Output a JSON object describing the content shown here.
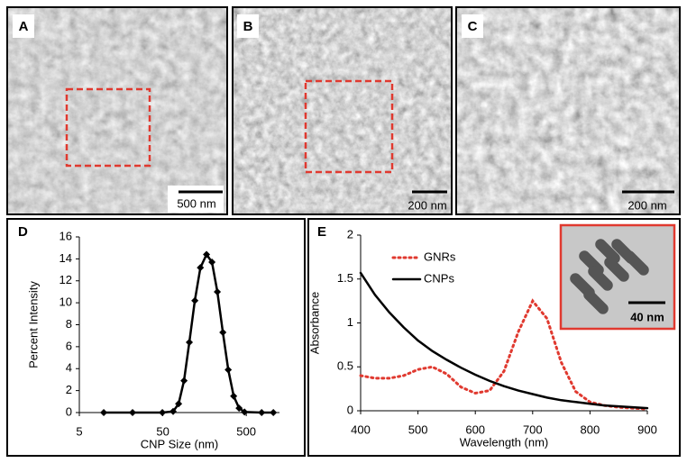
{
  "panels": [
    {
      "label": "A",
      "scale_bar": "500 nm"
    },
    {
      "label": "B",
      "scale_bar": "200 nm"
    },
    {
      "label": "C",
      "scale_bar": "200 nm"
    }
  ],
  "chart_data": [
    {
      "type": "line",
      "panel_label": "D",
      "xlabel": "CNP Size (nm)",
      "ylabel": "Percent Intensity",
      "xscale": "log",
      "xlim": [
        5,
        1250
      ],
      "xticks": [
        5,
        50,
        500
      ],
      "ylim": [
        0,
        16
      ],
      "yticks": [
        0,
        2,
        4,
        6,
        8,
        10,
        12,
        14,
        16
      ],
      "color": "#000000",
      "marker": "diamond",
      "x": [
        9.8,
        21.7,
        49.4,
        66.5,
        77.3,
        89.8,
        104,
        121,
        141,
        167,
        194,
        225,
        262,
        304,
        353,
        410,
        476,
        764,
        1055
      ],
      "values": [
        0,
        0,
        0,
        0.1,
        0.8,
        2.9,
        6.4,
        10.2,
        13.2,
        14.4,
        13.7,
        11.0,
        7.3,
        3.9,
        1.5,
        0.4,
        0.05,
        0,
        0
      ]
    },
    {
      "type": "line",
      "panel_label": "E",
      "xlabel": "Wavelength (nm)",
      "ylabel": "Absorbance",
      "xlim": [
        400,
        900
      ],
      "xticks": [
        400,
        500,
        600,
        700,
        800,
        900
      ],
      "ylim": [
        0,
        2
      ],
      "yticks": [
        0,
        0.5,
        1,
        1.5,
        2
      ],
      "legend": "upper center",
      "inset_label": "40 nm",
      "x": [
        400,
        425,
        450,
        475,
        500,
        525,
        550,
        575,
        600,
        625,
        650,
        675,
        700,
        725,
        750,
        775,
        800,
        825,
        850,
        875,
        900
      ],
      "series": [
        {
          "name": "GNRs",
          "color": "#e0392f",
          "dash": "dotted",
          "values": [
            0.4,
            0.37,
            0.37,
            0.4,
            0.47,
            0.5,
            0.42,
            0.27,
            0.2,
            0.23,
            0.45,
            0.9,
            1.25,
            1.05,
            0.55,
            0.22,
            0.1,
            0.06,
            0.04,
            0.03,
            0.02
          ]
        },
        {
          "name": "CNPs",
          "color": "#000000",
          "dash": "solid",
          "values": [
            1.57,
            1.32,
            1.12,
            0.95,
            0.8,
            0.68,
            0.58,
            0.49,
            0.41,
            0.34,
            0.28,
            0.23,
            0.19,
            0.15,
            0.12,
            0.1,
            0.08,
            0.06,
            0.05,
            0.04,
            0.03
          ]
        }
      ]
    }
  ]
}
